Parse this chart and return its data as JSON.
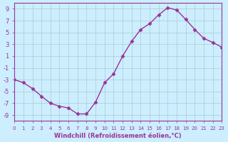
{
  "x_values": [
    0,
    1,
    2,
    3,
    4,
    5,
    6,
    7,
    8,
    9,
    10,
    11,
    12,
    13,
    14,
    15,
    16,
    17,
    18,
    19,
    20,
    21,
    22,
    23
  ],
  "y_values": [
    -3.0,
    -3.5,
    -4.5,
    -5.8,
    -7.0,
    -7.5,
    -7.8,
    -8.8,
    -8.8,
    -6.8,
    -3.5,
    -2.0,
    1.0,
    3.5,
    5.5,
    6.5,
    8.0,
    9.2,
    8.8,
    7.2,
    5.5,
    4.0,
    3.3,
    2.5
  ],
  "line_color": "#993399",
  "marker": "D",
  "marker_size": 2.5,
  "bg_color": "#cceeff",
  "grid_color": "#aacccc",
  "xlabel": "Windchill (Refroidissement éolien,°C)",
  "xlim": [
    0,
    23
  ],
  "ylim": [
    -10,
    10
  ],
  "yticks": [
    -9,
    -7,
    -5,
    -3,
    -1,
    1,
    3,
    5,
    7,
    9
  ],
  "xticks": [
    0,
    1,
    2,
    3,
    4,
    5,
    6,
    7,
    8,
    9,
    10,
    11,
    12,
    13,
    14,
    15,
    16,
    17,
    18,
    19,
    20,
    21,
    22,
    23
  ],
  "font_color": "#993399"
}
